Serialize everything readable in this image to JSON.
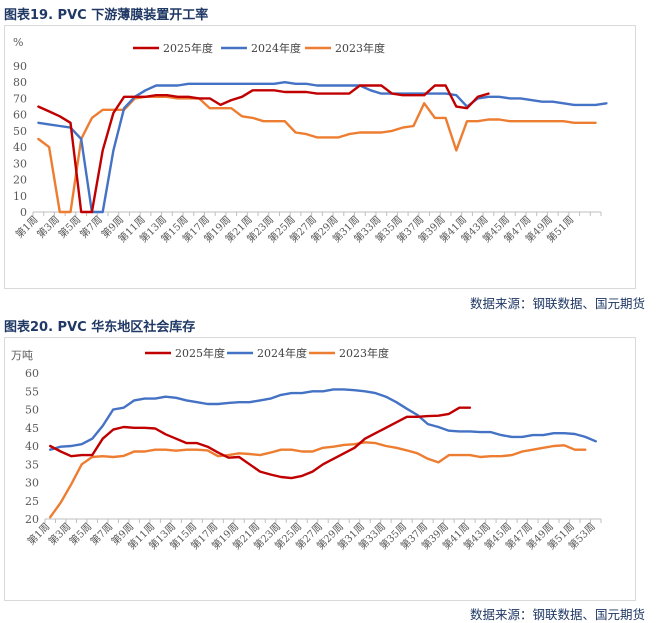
{
  "figures": [
    {
      "title": "图表19.  PVC 下游薄膜装置开工率",
      "source": "数据来源：钢联数据、国元期货",
      "chart_data": {
        "type": "line",
        "unit_label": "%",
        "ylim": [
          0,
          90
        ],
        "yticks": [
          0,
          10,
          20,
          30,
          40,
          50,
          60,
          70,
          80,
          90
        ],
        "x_count": 53,
        "xtick_labels": [
          "第1周",
          "第3周",
          "第5周",
          "第7周",
          "第9周",
          "第11周",
          "第13周",
          "第15周",
          "第17周",
          "第19周",
          "第21周",
          "第23周",
          "第25周",
          "第27周",
          "第29周",
          "第31周",
          "第33周",
          "第35周",
          "第37周",
          "第39周",
          "第41周",
          "第43周",
          "第45周",
          "第47周",
          "第49周",
          "第51周"
        ],
        "legend": [
          "2025年度",
          "2024年度",
          "2023年度"
        ],
        "grid": false,
        "series": [
          {
            "name": "2025年度",
            "color": "#c00000",
            "values": [
              65,
              62,
              59,
              55,
              0,
              0,
              38,
              61,
              71,
              71,
              71,
              72,
              72,
              71,
              71,
              70,
              70,
              66,
              69,
              71,
              75,
              75,
              75,
              74,
              74,
              74,
              73,
              73,
              73,
              73,
              78,
              78,
              78,
              73,
              72,
              72,
              72,
              78,
              78,
              65,
              64,
              71,
              73
            ]
          },
          {
            "name": "2024年度",
            "color": "#4472c4",
            "values": [
              55,
              54,
              53,
              52,
              45,
              0,
              0,
              38,
              64,
              71,
              75,
              78,
              78,
              78,
              79,
              79,
              79,
              79,
              79,
              79,
              79,
              79,
              79,
              80,
              79,
              79,
              78,
              78,
              78,
              78,
              78,
              75,
              73,
              73,
              73,
              73,
              73,
              73,
              73,
              72,
              65,
              70,
              71,
              71,
              70,
              70,
              69,
              68,
              68,
              67,
              66,
              66,
              66,
              67
            ]
          },
          {
            "name": "2023年度",
            "color": "#ed7d31",
            "values": [
              45,
              40,
              0,
              0,
              45,
              58,
              63,
              63,
              63,
              70,
              71,
              71,
              71,
              70,
              70,
              70,
              64,
              64,
              64,
              59,
              58,
              56,
              56,
              56,
              49,
              48,
              46,
              46,
              46,
              48,
              49,
              49,
              49,
              50,
              52,
              53,
              67,
              58,
              58,
              38,
              56,
              56,
              57,
              57,
              56,
              56,
              56,
              56,
              56,
              56,
              55,
              55,
              55
            ]
          }
        ]
      }
    },
    {
      "title": "图表20.  PVC 华东地区社会库存",
      "source": "数据来源：钢联数据、国元期货",
      "chart_data": {
        "type": "line",
        "unit_label": "万吨",
        "ylim": [
          20,
          60
        ],
        "yticks": [
          20,
          25,
          30,
          35,
          40,
          45,
          50,
          55,
          60
        ],
        "x_count": 53,
        "xtick_labels": [
          "第1周",
          "第3周",
          "第5周",
          "第7周",
          "第9周",
          "第11周",
          "第13周",
          "第15周",
          "第17周",
          "第19周",
          "第21周",
          "第23周",
          "第25周",
          "第27周",
          "第29周",
          "第31周",
          "第33周",
          "第35周",
          "第37周",
          "第39周",
          "第41周",
          "第43周",
          "第45周",
          "第47周",
          "第49周",
          "第51周",
          "第53周"
        ],
        "legend": [
          "2025年度",
          "2024年度",
          "2023年度"
        ],
        "grid": false,
        "series": [
          {
            "name": "2025年度",
            "color": "#c00000",
            "values": [
              40,
              38.5,
              37.2,
              37.5,
              37.5,
              42,
              44.5,
              45.2,
              45,
              45,
              44.8,
              43.2,
              42,
              40.8,
              40.8,
              39.8,
              38.2,
              36.8,
              37,
              35,
              33,
              32.2,
              31.5,
              31.2,
              31.8,
              33,
              35,
              36.5,
              38,
              39.5,
              42,
              43.5,
              45,
              46.5,
              48,
              48,
              48.2,
              48.3,
              48.8,
              50.5,
              50.5
            ]
          },
          {
            "name": "2024年度",
            "color": "#4472c4",
            "values": [
              39,
              39.8,
              40,
              40.5,
              42,
              45.5,
              50,
              50.5,
              52.5,
              53,
              53,
              53.5,
              53.2,
              52.5,
              52,
              51.5,
              51.5,
              51.8,
              52,
              52,
              52.5,
              53,
              54,
              54.5,
              54.5,
              55,
              55,
              55.5,
              55.5,
              55.3,
              55,
              54.5,
              53.5,
              52,
              50.2,
              48.5,
              46,
              45.2,
              44.2,
              44,
              44,
              43.8,
              43.8,
              43,
              42.5,
              42.5,
              43,
              43,
              43.5,
              43.5,
              43.3,
              42.5,
              41.3
            ]
          },
          {
            "name": "2023年度",
            "color": "#ed7d31",
            "values": [
              20.5,
              24.5,
              29.5,
              35,
              37,
              37.2,
              37,
              37.3,
              38.5,
              38.5,
              39,
              39,
              38.7,
              39,
              39,
              38.8,
              37.2,
              37.5,
              38,
              37.8,
              37.5,
              38.2,
              39,
              39,
              38.5,
              38.5,
              39.5,
              39.8,
              40.3,
              40.5,
              41,
              40.8,
              40,
              39.5,
              38.8,
              38,
              36.5,
              35.5,
              37.5,
              37.5,
              37.5,
              37,
              37.2,
              37.2,
              37.5,
              38.5,
              39,
              39.5,
              40,
              40.2,
              39,
              39
            ]
          }
        ]
      }
    }
  ]
}
